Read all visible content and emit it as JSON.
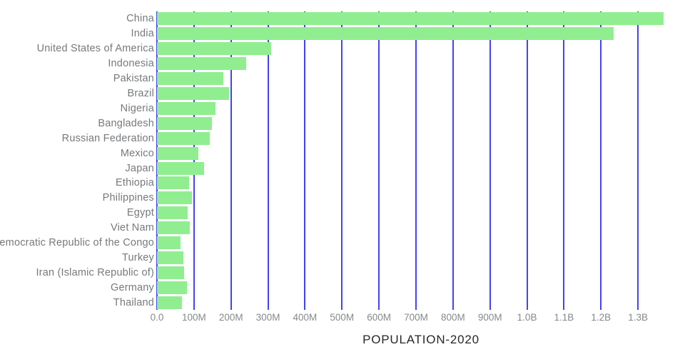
{
  "chart_data": {
    "type": "bar",
    "orientation": "horizontal",
    "title": "POPULATION-2020",
    "categories": [
      "China",
      "India",
      "United States of America",
      "Indonesia",
      "Pakistan",
      "Brazil",
      "Nigeria",
      "Bangladesh",
      "Russian Federation",
      "Mexico",
      "Japan",
      "Ethiopia",
      "Philippines",
      "Egypt",
      "Viet Nam",
      "Democratic Republic of the Congo",
      "Turkey",
      "Iran (Islamic Republic of)",
      "Germany",
      "Thailand"
    ],
    "values_millions": [
      1368.8,
      1234.3,
      309.0,
      241.8,
      179.4,
      195.7,
      158.5,
      147.6,
      143.2,
      112.5,
      128.1,
      87.6,
      94.0,
      82.8,
      88.0,
      64.6,
      72.3,
      74.0,
      80.8,
      67.2
    ],
    "x_tick_labels": [
      "0.0",
      "100M",
      "200M",
      "300M",
      "400M",
      "500M",
      "600M",
      "700M",
      "800M",
      "900M",
      "1.0B",
      "1.1B",
      "1.2B",
      "1.3B"
    ],
    "x_tick_values_millions": [
      0,
      100,
      200,
      300,
      400,
      500,
      600,
      700,
      800,
      900,
      1000,
      1100,
      1200,
      1300
    ],
    "xlim_millions": [
      0,
      1427
    ],
    "grid": true,
    "legend_visible": false,
    "colors": {
      "bar_fill": "#90ee90",
      "gridline": "#4343f0",
      "category_label": "#76797c",
      "tick_label": "#85888a",
      "title": "#262728",
      "background": "#ffffff"
    }
  }
}
